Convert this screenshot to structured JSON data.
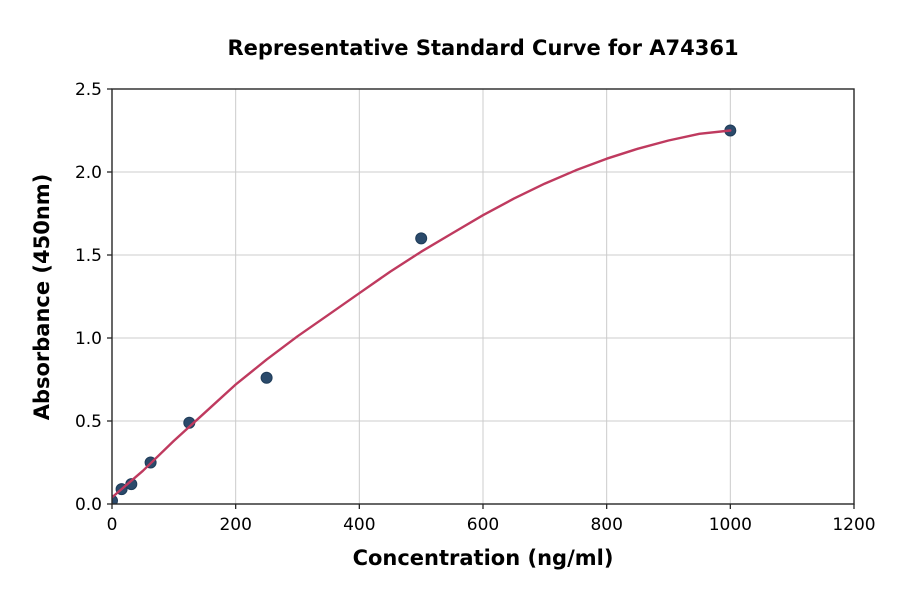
{
  "chart_data": {
    "type": "scatter",
    "title": "Representative Standard Curve for A74361",
    "xlabel": "Concentration (ng/ml)",
    "ylabel": "Absorbance (450nm)",
    "xlim": [
      0,
      1200
    ],
    "ylim": [
      0,
      2.5
    ],
    "xticks": [
      0,
      200,
      400,
      600,
      800,
      1000,
      1200
    ],
    "xtick_labels": [
      "0",
      "200",
      "400",
      "600",
      "800",
      "1000",
      "1200"
    ],
    "yticks": [
      0,
      0.5,
      1,
      1.5,
      2,
      2.5
    ],
    "ytick_labels": [
      "0.0",
      "0.5",
      "1.0",
      "1.5",
      "2.0",
      "2.5"
    ],
    "grid": true,
    "legend": false,
    "series": [
      {
        "name": "standard-points",
        "type": "scatter",
        "marker_color": "#2b4a6b",
        "marker_edge_color": "#1f3c59",
        "x": [
          0,
          15.6,
          31.2,
          62.5,
          125,
          250,
          500,
          1000
        ],
        "y": [
          0.02,
          0.09,
          0.12,
          0.25,
          0.49,
          0.76,
          1.6,
          2.25
        ]
      },
      {
        "name": "fit-curve",
        "type": "line",
        "color": "#bf3a5f",
        "x": [
          0,
          50,
          100,
          150,
          200,
          250,
          300,
          350,
          400,
          450,
          500,
          550,
          600,
          650,
          700,
          750,
          800,
          850,
          900,
          950,
          1000
        ],
        "y": [
          0.04,
          0.2,
          0.38,
          0.55,
          0.72,
          0.87,
          1.01,
          1.14,
          1.27,
          1.4,
          1.52,
          1.63,
          1.74,
          1.84,
          1.93,
          2.01,
          2.08,
          2.14,
          2.19,
          2.23,
          2.25
        ]
      }
    ],
    "style": {
      "background": "#ffffff",
      "grid_color": "#cccccc",
      "spine_color": "#262626",
      "tick_color": "#262626",
      "text_color": "#000000"
    }
  }
}
